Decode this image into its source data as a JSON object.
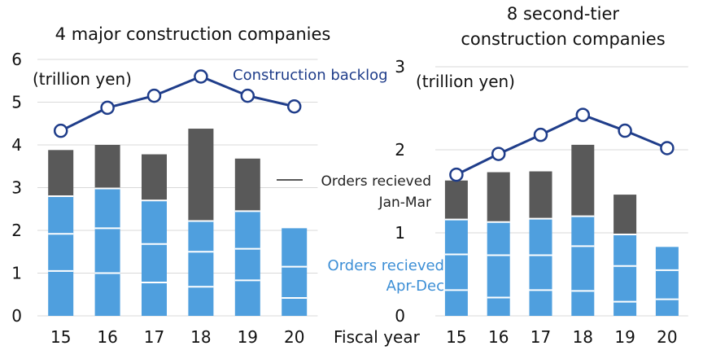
{
  "colors": {
    "apr_dec": "#4f9fde",
    "jan_mar": "#595959",
    "backlog_line": "#1f3d8a",
    "backlog_marker_fill": "#ffffff",
    "grid": "#d9d9d9",
    "segment_divider": "#ffffff",
    "annotation_blue": "#3d8fd6",
    "annotation_navy": "#1f3d8a"
  },
  "shared_x_label": "Fiscal year",
  "chart_data": [
    {
      "type": "bar",
      "stacked": true,
      "title": "4 major construction companies",
      "unit_label": "(trillion yen)",
      "categories": [
        "15",
        "16",
        "17",
        "18",
        "19",
        "20"
      ],
      "ylim": [
        0,
        6
      ],
      "yticks": [
        "0",
        "1",
        "2",
        "3",
        "4",
        "5",
        "6"
      ],
      "grid": true,
      "series": [
        {
          "name": "Orders recieved Apr-Dec",
          "values": [
            2.8,
            2.98,
            2.7,
            2.22,
            2.45,
            2.05
          ]
        },
        {
          "name": "Orders recieved Jan-Mar",
          "values": [
            1.08,
            1.02,
            1.08,
            2.16,
            1.23,
            0
          ]
        }
      ],
      "quarter_splits": [
        [
          1.05,
          1.92
        ],
        [
          1.0,
          2.05
        ],
        [
          0.78,
          1.68
        ],
        [
          0.68,
          1.5
        ],
        [
          0.83,
          1.57
        ],
        [
          0.42,
          1.15
        ]
      ],
      "line": {
        "name": "Construction backlog",
        "values": [
          4.33,
          4.87,
          5.15,
          5.6,
          5.15,
          4.9
        ]
      },
      "annotations": {
        "backlog": "Construction backlog"
      }
    },
    {
      "type": "bar",
      "stacked": true,
      "title": [
        "8 second-tier",
        "construction  companies"
      ],
      "unit_label": "(trillion yen)",
      "categories": [
        "15",
        "16",
        "17",
        "18",
        "19",
        "20"
      ],
      "ylim": [
        0,
        3
      ],
      "yticks": [
        "0",
        "1",
        "2",
        "3"
      ],
      "grid": true,
      "series": [
        {
          "name": "Orders recieved Apr-Dec",
          "values": [
            1.16,
            1.13,
            1.17,
            1.2,
            0.98,
            0.83
          ]
        },
        {
          "name": "Orders recieved Jan-Mar",
          "values": [
            0.47,
            0.6,
            0.57,
            0.86,
            0.48,
            0
          ]
        }
      ],
      "quarter_splits": [
        [
          0.31,
          0.74
        ],
        [
          0.22,
          0.73
        ],
        [
          0.31,
          0.73
        ],
        [
          0.3,
          0.84
        ],
        [
          0.17,
          0.6
        ],
        [
          0.2,
          0.55
        ]
      ],
      "line": {
        "name": "Construction backlog",
        "values": [
          1.7,
          1.95,
          2.18,
          2.42,
          2.23,
          2.02
        ]
      },
      "annotations": {
        "jan_mar": [
          "Orders recieved",
          "Jan-Mar"
        ],
        "apr_dec": [
          "Orders recieved",
          "Apr-Dec"
        ]
      }
    }
  ]
}
